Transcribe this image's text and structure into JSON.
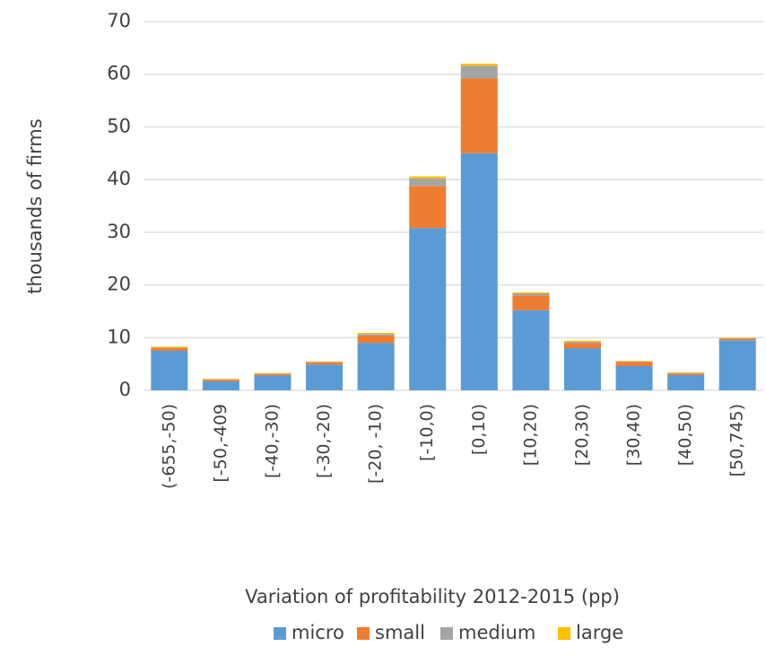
{
  "chart_data": {
    "type": "stacked_bar",
    "x_label": "Variation of profitability 2012-2015 (pp)",
    "y_label": "thousands of firms",
    "categories": [
      "(-655,-50)",
      "[-50,-409",
      "[-40,-30)",
      "[-30,-20)",
      "[-20, -10)",
      "[-10,0)",
      "[0,10)",
      "[10,20)",
      "[20,30)",
      "[30,40)",
      "[40,50)",
      "[50,745)"
    ],
    "series": [
      {
        "name": "micro",
        "color": "#5b9bd5",
        "values": [
          7.5,
          1.7,
          2.8,
          4.9,
          9,
          30.8,
          45,
          15.2,
          8,
          4.6,
          2.9,
          9.5
        ]
      },
      {
        "name": "small",
        "color": "#ed7d31",
        "values": [
          0.5,
          0.3,
          0.3,
          0.4,
          1.4,
          8,
          14.2,
          2.8,
          1,
          0.8,
          0.3,
          0.3
        ]
      },
      {
        "name": "medium",
        "color": "#a5a5a5",
        "values": [
          0.1,
          0.1,
          0.1,
          0.1,
          0.3,
          1.4,
          2.4,
          0.4,
          0.2,
          0.1,
          0.1,
          0.1
        ]
      },
      {
        "name": "large",
        "color": "#ffc000",
        "values": [
          0.2,
          0.1,
          0.1,
          0.1,
          0.2,
          0.4,
          0.4,
          0.2,
          0.2,
          0.1,
          0.1,
          0.1
        ]
      }
    ],
    "ylim": [
      0,
      70
    ],
    "yticks": [
      0,
      10,
      20,
      30,
      40,
      50,
      60,
      70
    ],
    "grid": true,
    "legend": "bottom"
  }
}
